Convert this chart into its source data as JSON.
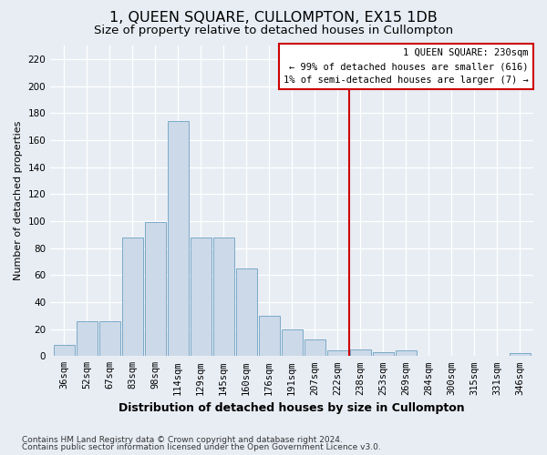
{
  "title": "1, QUEEN SQUARE, CULLOMPTON, EX15 1DB",
  "subtitle": "Size of property relative to detached houses in Cullompton",
  "xlabel": "Distribution of detached houses by size in Cullompton",
  "ylabel": "Number of detached properties",
  "footnote1": "Contains HM Land Registry data © Crown copyright and database right 2024.",
  "footnote2": "Contains public sector information licensed under the Open Government Licence v3.0.",
  "bar_labels": [
    "36sqm",
    "52sqm",
    "67sqm",
    "83sqm",
    "98sqm",
    "114sqm",
    "129sqm",
    "145sqm",
    "160sqm",
    "176sqm",
    "191sqm",
    "207sqm",
    "222sqm",
    "238sqm",
    "253sqm",
    "269sqm",
    "284sqm",
    "300sqm",
    "315sqm",
    "331sqm",
    "346sqm"
  ],
  "bar_values": [
    8,
    26,
    26,
    88,
    99,
    174,
    88,
    88,
    65,
    30,
    20,
    12,
    4,
    5,
    3,
    4,
    0,
    0,
    0,
    0,
    2
  ],
  "bar_color": "#ccd9e8",
  "bar_edgecolor": "#7baac8",
  "background_color": "#e8edf4",
  "plot_background": "#e8edf4",
  "grid_color": "#d0d8e4",
  "vline_x": 12.5,
  "vline_color": "#cc0000",
  "annotation_text": "1 QUEEN SQUARE: 230sqm\n← 99% of detached houses are smaller (616)\n1% of semi-detached houses are larger (7) →",
  "annotation_box_color": "#cc0000",
  "ylim": [
    0,
    230
  ],
  "yticks": [
    0,
    20,
    40,
    60,
    80,
    100,
    120,
    140,
    160,
    180,
    200,
    220
  ],
  "title_fontsize": 11.5,
  "subtitle_fontsize": 9.5,
  "ylabel_fontsize": 8,
  "xlabel_fontsize": 9,
  "tick_fontsize": 7.5,
  "annotation_fontsize": 7.5,
  "footnote_fontsize": 6.5
}
